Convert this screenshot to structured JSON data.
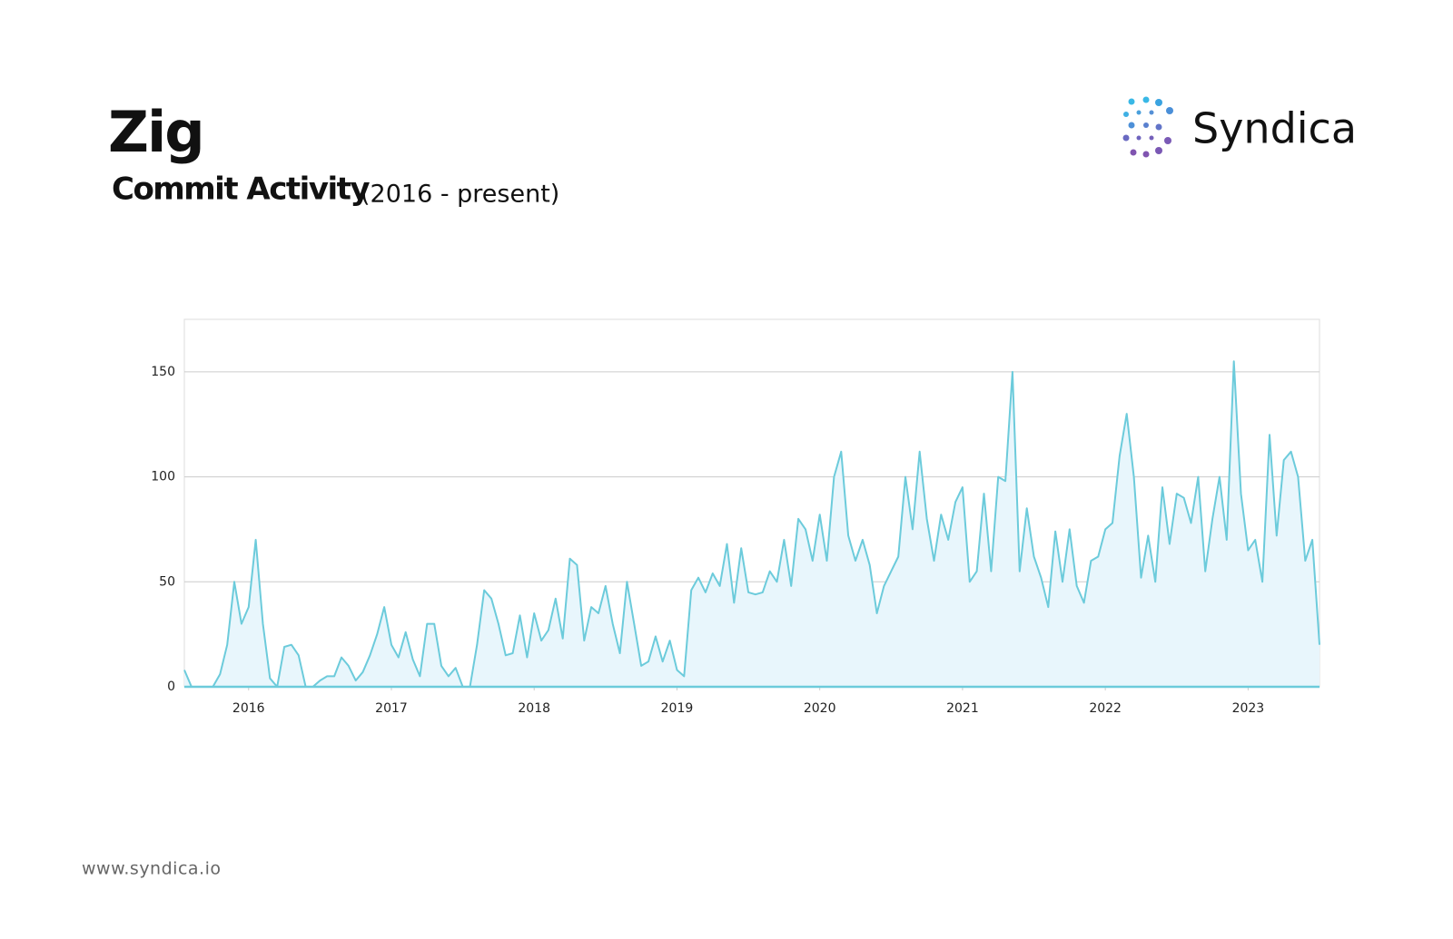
{
  "header": {
    "title": "Zig",
    "subtitle": "Commit Activity",
    "period": "(2016 - present)",
    "brand": "Syndica"
  },
  "footer": {
    "url": "www.syndica.io"
  },
  "chart_data": {
    "type": "area",
    "color": "#6ccbdb",
    "area_color": "#e8f6fc",
    "xlim": [
      2015.55,
      2023.5
    ],
    "xticks": [
      2016,
      2017,
      2018,
      2019,
      2020,
      2021,
      2022,
      2023
    ],
    "ylim": [
      0,
      175
    ],
    "yticks": [
      0,
      50,
      100,
      150
    ],
    "grid": true,
    "x": [
      2015.55,
      2015.6,
      2015.65,
      2015.7,
      2015.75,
      2015.8,
      2015.85,
      2015.9,
      2015.95,
      2016.0,
      2016.05,
      2016.1,
      2016.15,
      2016.2,
      2016.25,
      2016.3,
      2016.35,
      2016.4,
      2016.45,
      2016.5,
      2016.55,
      2016.6,
      2016.65,
      2016.7,
      2016.75,
      2016.8,
      2016.85,
      2016.9,
      2016.95,
      2017.0,
      2017.05,
      2017.1,
      2017.15,
      2017.2,
      2017.25,
      2017.3,
      2017.35,
      2017.4,
      2017.45,
      2017.5,
      2017.55,
      2017.6,
      2017.65,
      2017.7,
      2017.75,
      2017.8,
      2017.85,
      2017.9,
      2017.95,
      2018.0,
      2018.05,
      2018.1,
      2018.15,
      2018.2,
      2018.25,
      2018.3,
      2018.35,
      2018.4,
      2018.45,
      2018.5,
      2018.55,
      2018.6,
      2018.65,
      2018.7,
      2018.75,
      2018.8,
      2018.85,
      2018.9,
      2018.95,
      2019.0,
      2019.05,
      2019.1,
      2019.15,
      2019.2,
      2019.25,
      2019.3,
      2019.35,
      2019.4,
      2019.45,
      2019.5,
      2019.55,
      2019.6,
      2019.65,
      2019.7,
      2019.75,
      2019.8,
      2019.85,
      2019.9,
      2019.95,
      2020.0,
      2020.05,
      2020.1,
      2020.15,
      2020.2,
      2020.25,
      2020.3,
      2020.35,
      2020.4,
      2020.45,
      2020.5,
      2020.55,
      2020.6,
      2020.65,
      2020.7,
      2020.75,
      2020.8,
      2020.85,
      2020.9,
      2020.95,
      2021.0,
      2021.05,
      2021.1,
      2021.15,
      2021.2,
      2021.25,
      2021.3,
      2021.35,
      2021.4,
      2021.45,
      2021.5,
      2021.55,
      2021.6,
      2021.65,
      2021.7,
      2021.75,
      2021.8,
      2021.85,
      2021.9,
      2021.95,
      2022.0,
      2022.05,
      2022.1,
      2022.15,
      2022.2,
      2022.25,
      2022.3,
      2022.35,
      2022.4,
      2022.45,
      2022.5,
      2022.55,
      2022.6,
      2022.65,
      2022.7,
      2022.75,
      2022.8,
      2022.85,
      2022.9,
      2022.95,
      2023.0,
      2023.05,
      2023.1,
      2023.15,
      2023.2,
      2023.25,
      2023.3,
      2023.35,
      2023.4,
      2023.45,
      2023.5
    ],
    "values": [
      8,
      0,
      0,
      0,
      0,
      6,
      20,
      50,
      30,
      38,
      70,
      30,
      4,
      0,
      19,
      20,
      15,
      0,
      0,
      3,
      5,
      5,
      14,
      10,
      3,
      7,
      15,
      25,
      38,
      20,
      14,
      26,
      13,
      5,
      30,
      30,
      10,
      5,
      9,
      0,
      0,
      20,
      46,
      42,
      30,
      15,
      16,
      34,
      14,
      35,
      22,
      27,
      42,
      23,
      61,
      58,
      22,
      38,
      35,
      48,
      30,
      16,
      50,
      30,
      10,
      12,
      24,
      12,
      22,
      8,
      5,
      46,
      52,
      45,
      54,
      48,
      68,
      40,
      66,
      45,
      44,
      45,
      55,
      50,
      70,
      48,
      80,
      75,
      60,
      82,
      60,
      100,
      112,
      72,
      60,
      70,
      58,
      35,
      48,
      55,
      62,
      100,
      75,
      112,
      80,
      60,
      82,
      70,
      88,
      95,
      50,
      55,
      92,
      55,
      100,
      98,
      150,
      55,
      85,
      62,
      52,
      38,
      74,
      50,
      75,
      48,
      40,
      60,
      62,
      75,
      78,
      110,
      130,
      100,
      52,
      72,
      50,
      95,
      68,
      92,
      90,
      78,
      100,
      55,
      80,
      100,
      70,
      155,
      92,
      65,
      70,
      50,
      120,
      72,
      108,
      112,
      100,
      60,
      70,
      20
    ]
  }
}
